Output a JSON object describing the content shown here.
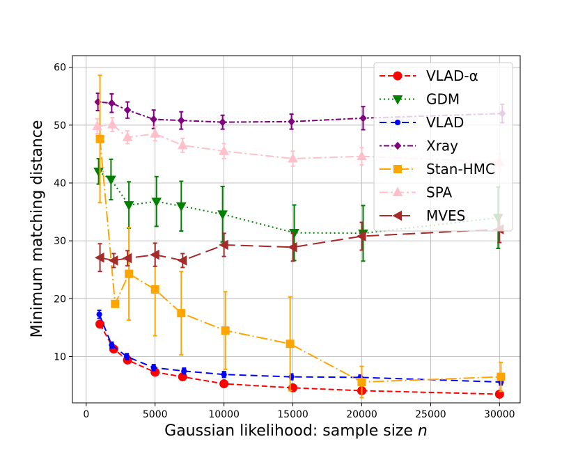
{
  "chart_data": {
    "type": "line",
    "title": "",
    "xlabel": "Gaussian likelihood: sample size ",
    "xlabel_italic": "n",
    "ylabel": "Minimum matching distance",
    "xlim": [
      -1000,
      31500
    ],
    "ylim": [
      2,
      62
    ],
    "xticks": [
      0,
      5000,
      10000,
      15000,
      20000,
      25000,
      30000
    ],
    "xtick_labels": [
      "0",
      "5000",
      "10000",
      "15000",
      "20000",
      "25000",
      "30000"
    ],
    "yticks": [
      10,
      20,
      30,
      40,
      50,
      60
    ],
    "ytick_labels": [
      "10",
      "20",
      "30",
      "40",
      "50",
      "60"
    ],
    "grid": true,
    "legend_position": "top-right",
    "series": [
      {
        "name": "VLAD-α",
        "color": "#ff0000",
        "dash": "8 4",
        "marker": "circle",
        "x": [
          1000,
          2000,
          3000,
          5000,
          7000,
          10000,
          15000,
          20000,
          30000
        ],
        "y": [
          15.6,
          11.3,
          9.4,
          7.3,
          6.5,
          5.3,
          4.6,
          4.1,
          3.5
        ],
        "err": [
          0,
          0,
          0,
          0,
          0,
          0,
          0,
          0,
          0
        ]
      },
      {
        "name": "GDM",
        "color": "#008000",
        "dash": "2 4",
        "marker": "triangle-down",
        "x": [
          900,
          1800,
          3100,
          5100,
          6900,
          9900,
          15100,
          20100,
          29900
        ],
        "y": [
          42.0,
          40.6,
          36.2,
          36.8,
          36.0,
          34.6,
          31.4,
          31.3,
          34.0
        ],
        "err": [
          2.2,
          3.5,
          4.0,
          4.3,
          4.3,
          4.8,
          4.8,
          4.8,
          5.3
        ]
      },
      {
        "name": "VLAD",
        "color": "#0000ff",
        "dash": "10 6",
        "marker": "dot",
        "x": [
          950,
          1850,
          2950,
          4900,
          7100,
          10000,
          14900,
          19900,
          30100
        ],
        "y": [
          17.3,
          12.0,
          10.0,
          8.1,
          7.5,
          6.9,
          6.5,
          6.4,
          5.6
        ],
        "err": [
          0.7,
          0.5,
          0.5,
          0.5,
          0.5,
          0.5,
          0.5,
          0.4,
          0.5
        ]
      },
      {
        "name": "Xray",
        "color": "#800080",
        "dash": "3 3 8 3",
        "marker": "diamond",
        "x": [
          850,
          1850,
          3000,
          4900,
          6900,
          9900,
          14900,
          20100,
          30200
        ],
        "y": [
          54.0,
          53.8,
          52.6,
          51.0,
          50.8,
          50.5,
          50.6,
          51.2,
          52.0
        ],
        "err": [
          1.5,
          1.6,
          1.4,
          1.6,
          1.5,
          1.2,
          1.3,
          2.0,
          1.6
        ]
      },
      {
        "name": "Stan-HMC",
        "color": "#ffa500",
        "dash": "16 4 2 4",
        "marker": "square",
        "x": [
          1000,
          2100,
          3100,
          5000,
          6900,
          10100,
          14800,
          20000,
          30100
        ],
        "y": [
          47.6,
          19.1,
          24.3,
          21.6,
          17.5,
          14.5,
          12.2,
          5.6,
          6.5
        ],
        "err": [
          11.0,
          0,
          8.0,
          8.0,
          7.2,
          6.7,
          8.1,
          2.7,
          2.5
        ]
      },
      {
        "name": "SPA",
        "color": "#ffc0cb",
        "dash": "12 4 3 4",
        "marker": "triangle-up",
        "x": [
          800,
          1900,
          3000,
          5000,
          7000,
          10000,
          15000,
          20000,
          30000
        ],
        "y": [
          49.8,
          50.1,
          47.9,
          48.5,
          46.5,
          45.5,
          44.2,
          44.6,
          43.6
        ],
        "err": [
          1.3,
          1.2,
          1.1,
          1.2,
          1.2,
          1.3,
          1.3,
          1.5,
          1.4
        ]
      },
      {
        "name": "MVES",
        "color": "#a52a2a",
        "dash": "18 8",
        "marker": "triangle-left",
        "x": [
          1000,
          2000,
          3000,
          5000,
          7000,
          10000,
          15000,
          20000,
          30000
        ],
        "y": [
          27.1,
          26.6,
          27.0,
          27.6,
          26.6,
          29.3,
          28.9,
          30.8,
          32.0
        ],
        "err": [
          2.4,
          1.2,
          1.3,
          2.0,
          1.2,
          2.0,
          2.4,
          2.4,
          2.3
        ]
      }
    ]
  }
}
